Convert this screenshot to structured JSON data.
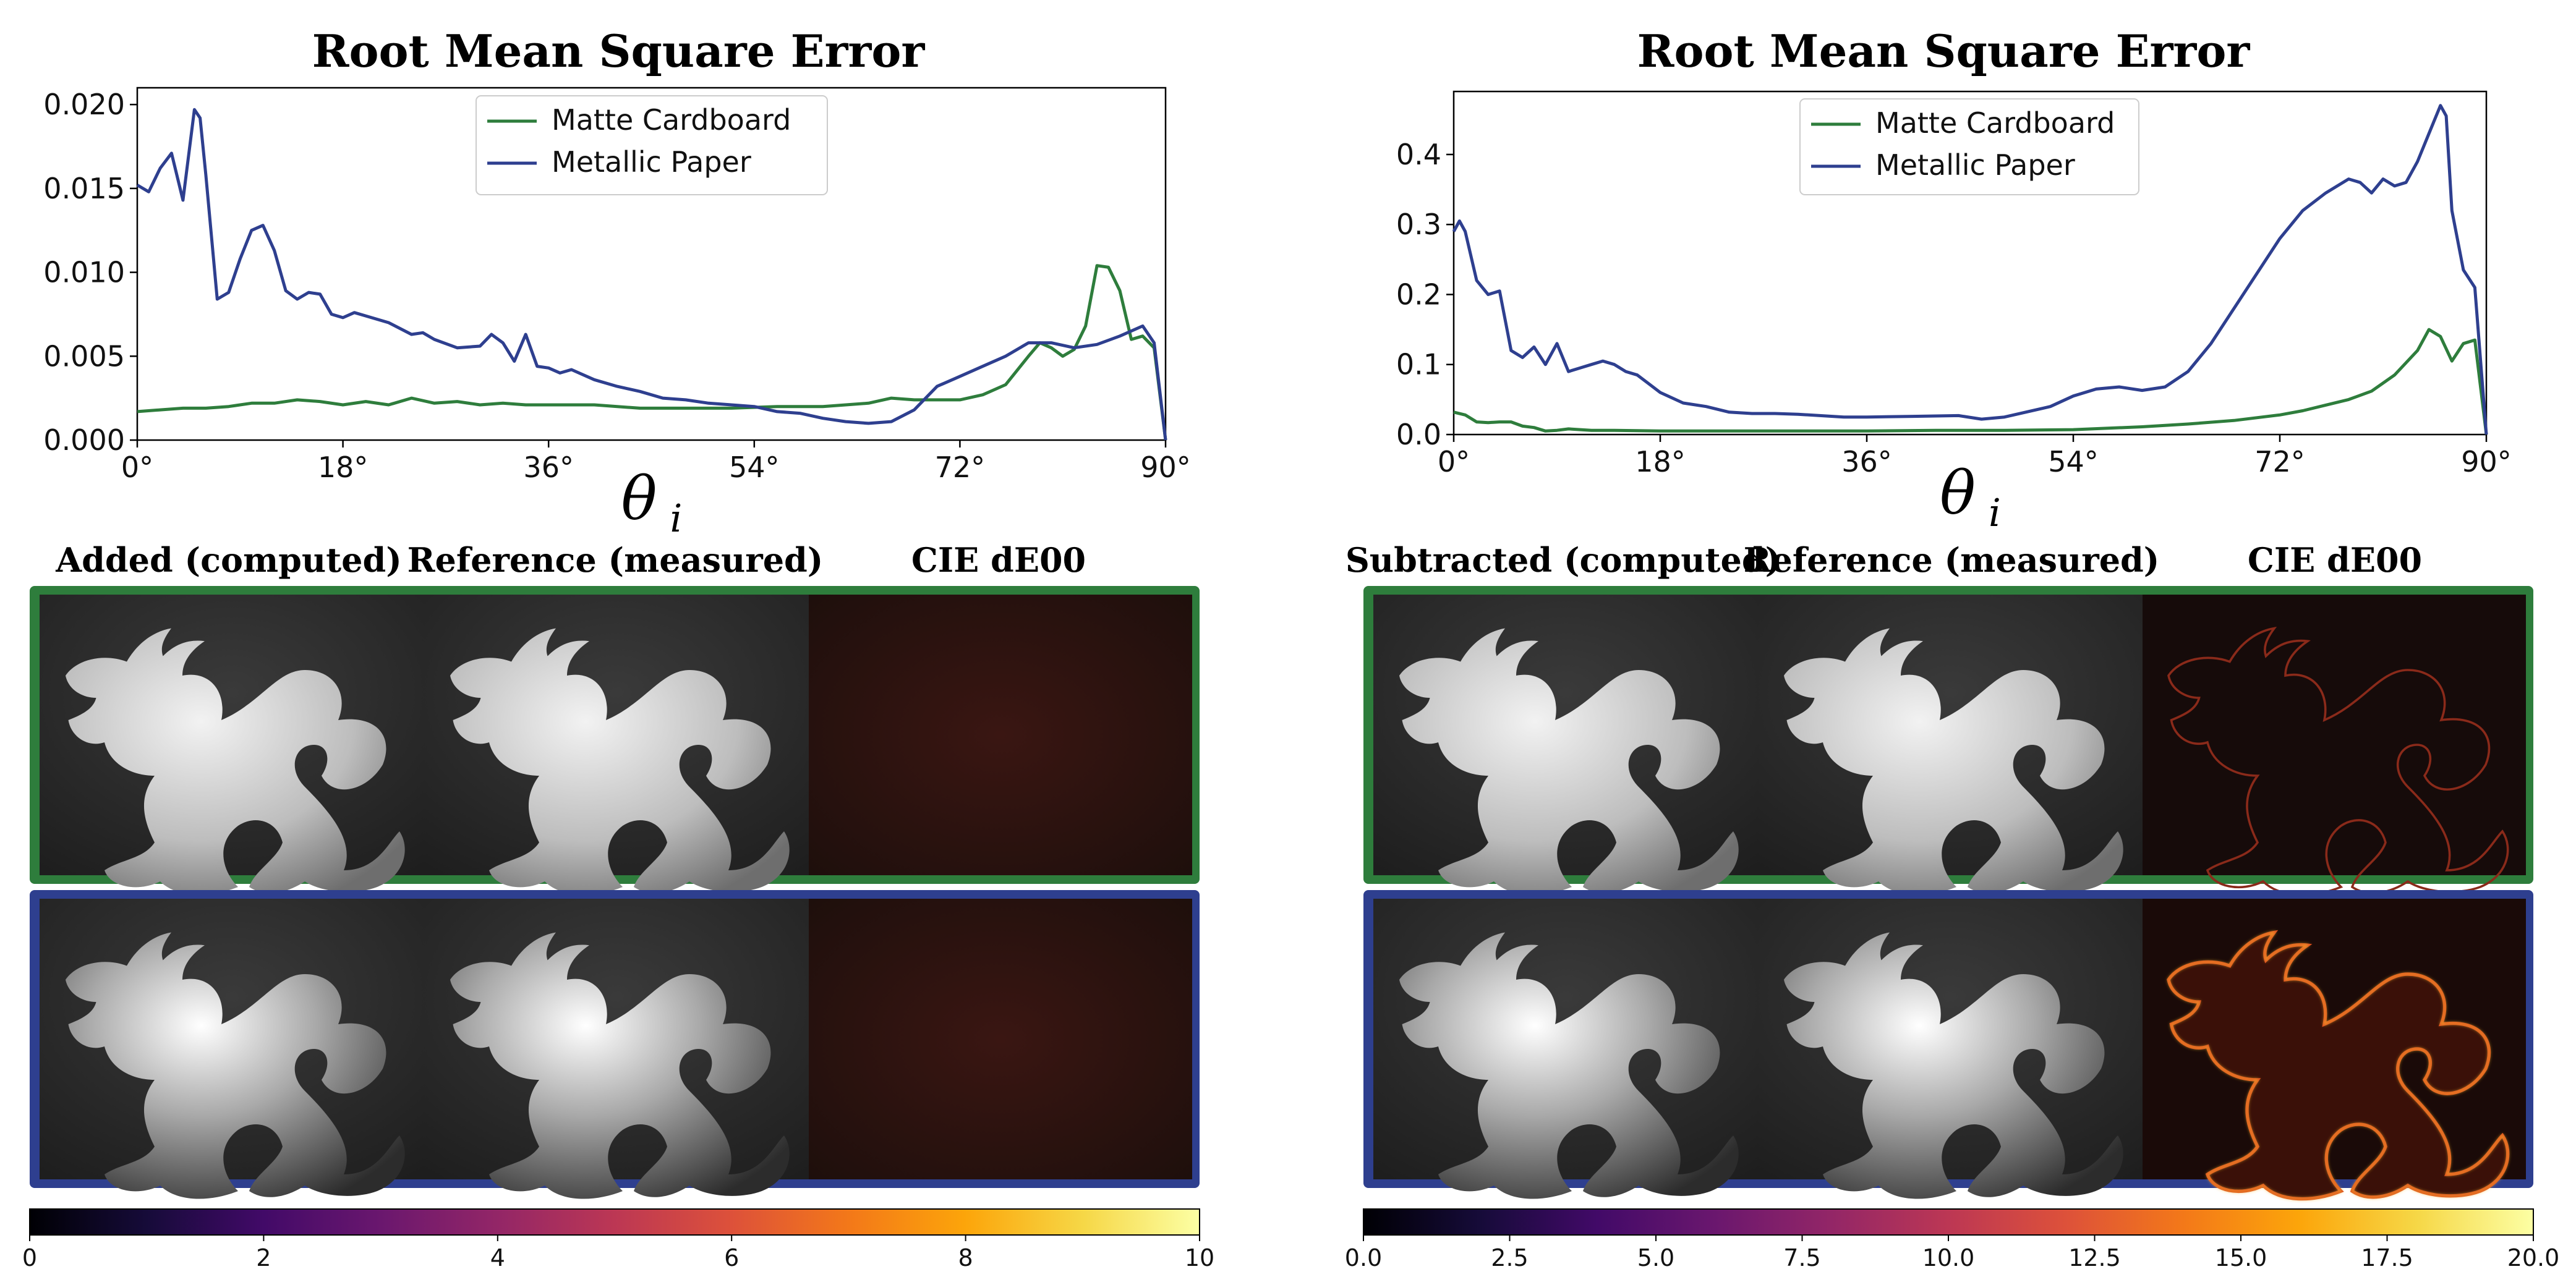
{
  "chart_data": [
    {
      "type": "line",
      "title": "Root Mean Square Error",
      "xlabel": "θ",
      "xlabel_sub": "i",
      "xlim": [
        0,
        90
      ],
      "ylim": [
        0,
        0.021
      ],
      "xticks": [
        0,
        18,
        36,
        54,
        72,
        90
      ],
      "xtick_labels": [
        "0°",
        "18°",
        "36°",
        "54°",
        "72°",
        "90°"
      ],
      "yticks": [
        0,
        0.005,
        0.01,
        0.015,
        0.02
      ],
      "ytick_labels": [
        "0.000",
        "0.005",
        "0.010",
        "0.015",
        "0.020"
      ],
      "legend_position": "top-center",
      "series": [
        {
          "name": "Matte Cardboard",
          "color": "#2e7d3c",
          "x": [
            0,
            2,
            4,
            6,
            8,
            10,
            12,
            14,
            16,
            18,
            20,
            22,
            24,
            26,
            28,
            30,
            32,
            34,
            36,
            40,
            44,
            48,
            52,
            56,
            60,
            64,
            66,
            68,
            70,
            72,
            74,
            76,
            78,
            79,
            80,
            81,
            82,
            83,
            84,
            85,
            86,
            87,
            88,
            89,
            90
          ],
          "y": [
            0.0017,
            0.0018,
            0.0019,
            0.0019,
            0.002,
            0.0022,
            0.0022,
            0.0024,
            0.0023,
            0.0021,
            0.0023,
            0.0021,
            0.0025,
            0.0022,
            0.0023,
            0.0021,
            0.0022,
            0.0021,
            0.0021,
            0.0021,
            0.0019,
            0.0019,
            0.0019,
            0.002,
            0.002,
            0.0022,
            0.0025,
            0.0024,
            0.0024,
            0.0024,
            0.0027,
            0.0033,
            0.005,
            0.0058,
            0.0055,
            0.005,
            0.0054,
            0.0068,
            0.0104,
            0.0103,
            0.0089,
            0.006,
            0.0062,
            0.0055,
            0.0
          ]
        },
        {
          "name": "Metallic Paper",
          "color": "#2e3f8f",
          "x": [
            0,
            1,
            2,
            3,
            4,
            5,
            5.5,
            6,
            7,
            8,
            9,
            10,
            11,
            12,
            13,
            14,
            15,
            16,
            17,
            18,
            19,
            20,
            22,
            24,
            25,
            26,
            28,
            30,
            31,
            32,
            33,
            34,
            35,
            36,
            37,
            38,
            40,
            42,
            44,
            46,
            48,
            50,
            52,
            54,
            56,
            58,
            60,
            62,
            64,
            66,
            68,
            70,
            72,
            74,
            76,
            78,
            80,
            82,
            84,
            86,
            88,
            89,
            90
          ],
          "y": [
            0.0152,
            0.0148,
            0.0162,
            0.0171,
            0.0143,
            0.0197,
            0.0192,
            0.0158,
            0.0084,
            0.0088,
            0.0108,
            0.0125,
            0.0128,
            0.0113,
            0.0089,
            0.0084,
            0.0088,
            0.0087,
            0.0075,
            0.0073,
            0.0076,
            0.0074,
            0.007,
            0.0063,
            0.0064,
            0.006,
            0.0055,
            0.0056,
            0.0063,
            0.0058,
            0.0047,
            0.0063,
            0.0044,
            0.0043,
            0.004,
            0.0042,
            0.0036,
            0.0032,
            0.0029,
            0.0025,
            0.0024,
            0.0022,
            0.0021,
            0.002,
            0.0017,
            0.0016,
            0.0013,
            0.0011,
            0.001,
            0.0011,
            0.0018,
            0.0032,
            0.0038,
            0.0044,
            0.005,
            0.0058,
            0.0058,
            0.0055,
            0.0057,
            0.0062,
            0.0068,
            0.0058,
            0.0
          ]
        }
      ]
    },
    {
      "type": "line",
      "title": "Root Mean Square Error",
      "xlabel": "θ",
      "xlabel_sub": "i",
      "xlim": [
        0,
        90
      ],
      "ylim": [
        0,
        0.49
      ],
      "xticks": [
        0,
        18,
        36,
        54,
        72,
        90
      ],
      "xtick_labels": [
        "0°",
        "18°",
        "36°",
        "54°",
        "72°",
        "90°"
      ],
      "yticks": [
        0,
        0.1,
        0.2,
        0.3,
        0.4
      ],
      "ytick_labels": [
        "0.0",
        "0.1",
        "0.2",
        "0.3",
        "0.4"
      ],
      "legend_position": "top-center",
      "series": [
        {
          "name": "Matte Cardboard",
          "color": "#2e7d3c",
          "x": [
            0,
            1,
            2,
            3,
            4,
            5,
            6,
            7,
            8,
            9,
            10,
            12,
            14,
            18,
            24,
            30,
            36,
            42,
            48,
            54,
            60,
            64,
            68,
            72,
            74,
            76,
            78,
            80,
            82,
            84,
            85,
            86,
            87,
            88,
            89,
            90
          ],
          "y": [
            0.032,
            0.028,
            0.018,
            0.017,
            0.018,
            0.018,
            0.012,
            0.01,
            0.005,
            0.006,
            0.008,
            0.006,
            0.006,
            0.005,
            0.005,
            0.005,
            0.005,
            0.006,
            0.006,
            0.007,
            0.011,
            0.015,
            0.02,
            0.028,
            0.034,
            0.042,
            0.05,
            0.062,
            0.085,
            0.12,
            0.15,
            0.14,
            0.105,
            0.13,
            0.135,
            0.0
          ]
        },
        {
          "name": "Metallic Paper",
          "color": "#2e3f8f",
          "x": [
            0,
            0.5,
            1,
            2,
            3,
            4,
            5,
            6,
            7,
            8,
            9,
            10,
            11,
            12,
            13,
            14,
            15,
            16,
            18,
            20,
            22,
            24,
            26,
            28,
            30,
            34,
            36,
            40,
            44,
            46,
            48,
            52,
            54,
            56,
            58,
            60,
            62,
            64,
            66,
            68,
            70,
            72,
            74,
            76,
            78,
            79,
            80,
            81,
            82,
            83,
            84,
            85,
            86,
            86.5,
            87,
            88,
            89,
            90
          ],
          "y": [
            0.29,
            0.305,
            0.29,
            0.22,
            0.2,
            0.205,
            0.12,
            0.11,
            0.125,
            0.1,
            0.13,
            0.09,
            0.095,
            0.1,
            0.105,
            0.1,
            0.09,
            0.085,
            0.06,
            0.045,
            0.04,
            0.032,
            0.03,
            0.03,
            0.029,
            0.025,
            0.025,
            0.026,
            0.027,
            0.022,
            0.025,
            0.04,
            0.055,
            0.065,
            0.068,
            0.063,
            0.068,
            0.09,
            0.13,
            0.18,
            0.23,
            0.28,
            0.32,
            0.345,
            0.365,
            0.36,
            0.345,
            0.365,
            0.355,
            0.36,
            0.39,
            0.43,
            0.47,
            0.455,
            0.32,
            0.235,
            0.21,
            0.0
          ]
        }
      ]
    },
    {
      "type": "heatmap",
      "colorbar_range": [
        0,
        10
      ],
      "colorbar_ticks": [
        0,
        2,
        4,
        6,
        8,
        10
      ],
      "colorbar_tick_labels": [
        "0",
        "2",
        "4",
        "6",
        "8",
        "10"
      ]
    },
    {
      "type": "heatmap",
      "colorbar_range": [
        0,
        20
      ],
      "colorbar_ticks": [
        0,
        2.5,
        5,
        7.5,
        10,
        12.5,
        15,
        17.5,
        20
      ],
      "colorbar_tick_labels": [
        "0.0",
        "2.5",
        "5.0",
        "7.5",
        "10.0",
        "12.5",
        "15.0",
        "17.5",
        "20.0"
      ]
    }
  ],
  "left_panel": {
    "headers": [
      "Added (computed)",
      "Reference (measured)",
      "CIE dE00"
    ]
  },
  "right_panel": {
    "headers": [
      "Subtracted (computed)",
      "Reference (measured)",
      "CIE dE00"
    ]
  },
  "colors": {
    "matte_frame": "#2e7d3c",
    "metallic_frame": "#2e3f8f"
  }
}
